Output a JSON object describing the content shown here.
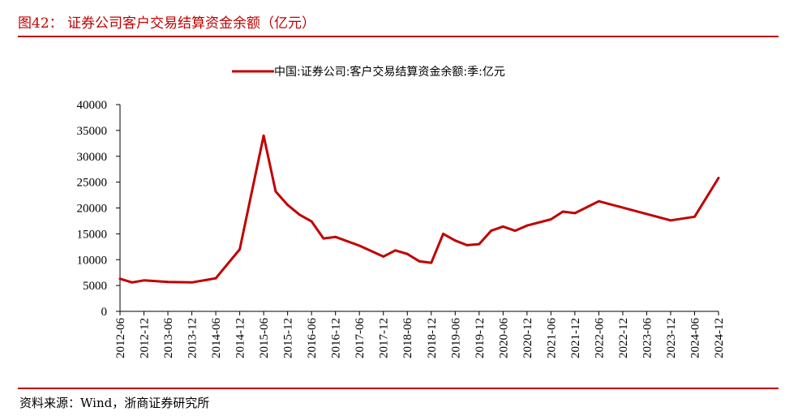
{
  "figure": {
    "title": "图42： 证券公司客户交易结算资金余额（亿元）",
    "source": "资料来源：Wind，浙商证券研究所"
  },
  "colors": {
    "accent": "#c00000",
    "series": "#c00000"
  },
  "chart_data": {
    "type": "line",
    "title": "",
    "xlabel": "",
    "ylabel": "",
    "ylim": [
      0,
      40000
    ],
    "yticks": [
      0,
      5000,
      10000,
      15000,
      20000,
      25000,
      30000,
      35000,
      40000
    ],
    "xticks": [
      "2012-06",
      "2012-12",
      "2013-06",
      "2013-12",
      "2014-06",
      "2014-12",
      "2015-06",
      "2015-12",
      "2016-06",
      "2016-12",
      "2017-06",
      "2017-12",
      "2018-06",
      "2018-12",
      "2019-06",
      "2019-12",
      "2020-06",
      "2020-12",
      "2021-06",
      "2021-12",
      "2022-06",
      "2022-12",
      "2023-06",
      "2023-12",
      "2024-06",
      "2024-12"
    ],
    "grid": false,
    "legend_position": "top-center",
    "series": [
      {
        "name": "中国:证券公司:客户交易结算资金余额:季:亿元",
        "x": [
          "2012-06",
          "2012-09",
          "2012-12",
          "2013-06",
          "2013-12",
          "2014-06",
          "2014-12",
          "2015-06",
          "2015-09",
          "2015-12",
          "2016-03",
          "2016-06",
          "2016-09",
          "2016-12",
          "2017-06",
          "2017-12",
          "2018-03",
          "2018-06",
          "2018-09",
          "2018-12",
          "2019-03",
          "2019-06",
          "2019-09",
          "2019-12",
          "2020-03",
          "2020-06",
          "2020-09",
          "2020-12",
          "2021-06",
          "2021-09",
          "2021-12",
          "2022-06",
          "2023-12",
          "2024-06",
          "2024-12"
        ],
        "values": [
          6300,
          5600,
          6000,
          5700,
          5600,
          6400,
          12000,
          34000,
          23200,
          20600,
          18700,
          17400,
          14100,
          14400,
          12700,
          10600,
          11800,
          11100,
          9700,
          9400,
          15000,
          13700,
          12800,
          13000,
          15600,
          16400,
          15600,
          16600,
          17800,
          19300,
          19000,
          21300,
          17600,
          18300,
          25800
        ]
      }
    ]
  }
}
